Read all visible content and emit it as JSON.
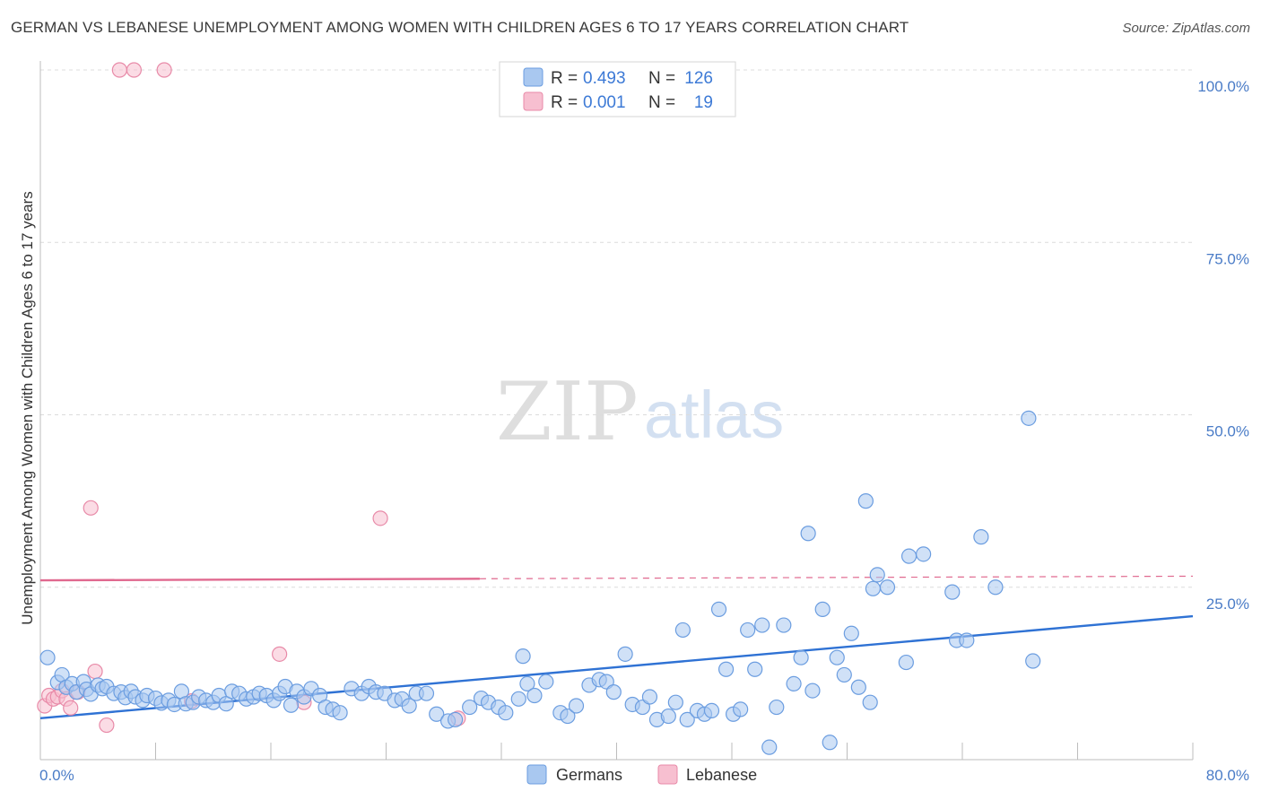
{
  "title": "GERMAN VS LEBANESE UNEMPLOYMENT AMONG WOMEN WITH CHILDREN AGES 6 TO 17 YEARS CORRELATION CHART",
  "source": "Source: ZipAtlas.com",
  "watermark": {
    "zip": "ZIP",
    "atlas": "atlas"
  },
  "colors": {
    "germans_fill": "#a9c8f0",
    "germans_stroke": "#6b9de0",
    "germans_line": "#2f72d4",
    "lebanese_fill": "#f7bfd0",
    "lebanese_stroke": "#e88aa8",
    "lebanese_line": "#e0698f",
    "tick_text": "#4a7cc7",
    "grid": "#dcdcdc"
  },
  "legend": {
    "rows": [
      {
        "r_label": "R = ",
        "r_value": "0.493",
        "n_label": "N = ",
        "n_value": "126"
      },
      {
        "r_label": "R = ",
        "r_value": "0.001",
        "n_label": "N = ",
        "n_value": "19"
      }
    ]
  },
  "chart_data": {
    "type": "scatter",
    "xlabel": "",
    "ylabel": "Unemployment Among Women with Children Ages 6 to 17 years",
    "xlim": [
      0,
      80
    ],
    "ylim": [
      0,
      100
    ],
    "x_tick_labels": [
      "0.0%",
      "80.0%"
    ],
    "y_ticks": [
      25,
      50,
      75,
      100
    ],
    "y_tick_labels": [
      "25.0%",
      "50.0%",
      "75.0%",
      "100.0%"
    ],
    "series": [
      {
        "name": "Germans",
        "trendline": {
          "x": [
            0,
            80
          ],
          "y": [
            6.0,
            20.8
          ]
        },
        "points": [
          [
            0.5,
            14.8
          ],
          [
            1.2,
            11.2
          ],
          [
            1.5,
            12.3
          ],
          [
            1.8,
            10.5
          ],
          [
            2.2,
            11.0
          ],
          [
            2.5,
            9.8
          ],
          [
            3.0,
            11.3
          ],
          [
            3.2,
            10.2
          ],
          [
            3.5,
            9.5
          ],
          [
            4.0,
            10.8
          ],
          [
            4.3,
            10.3
          ],
          [
            4.6,
            10.6
          ],
          [
            5.1,
            9.6
          ],
          [
            5.6,
            9.8
          ],
          [
            5.9,
            9.0
          ],
          [
            6.3,
            9.9
          ],
          [
            6.6,
            9.1
          ],
          [
            7.1,
            8.6
          ],
          [
            7.4,
            9.3
          ],
          [
            8.0,
            8.9
          ],
          [
            8.4,
            8.2
          ],
          [
            8.9,
            8.6
          ],
          [
            9.3,
            8.0
          ],
          [
            9.8,
            9.9
          ],
          [
            10.1,
            8.1
          ],
          [
            10.6,
            8.3
          ],
          [
            11.0,
            9.1
          ],
          [
            11.5,
            8.6
          ],
          [
            12.0,
            8.3
          ],
          [
            12.4,
            9.3
          ],
          [
            12.9,
            8.1
          ],
          [
            13.3,
            9.9
          ],
          [
            13.8,
            9.6
          ],
          [
            14.3,
            8.8
          ],
          [
            14.8,
            9.1
          ],
          [
            15.2,
            9.6
          ],
          [
            15.7,
            9.3
          ],
          [
            16.2,
            8.6
          ],
          [
            16.6,
            9.6
          ],
          [
            17.0,
            10.6
          ],
          [
            17.4,
            7.9
          ],
          [
            17.8,
            9.9
          ],
          [
            18.3,
            9.1
          ],
          [
            18.8,
            10.3
          ],
          [
            19.4,
            9.3
          ],
          [
            19.8,
            7.6
          ],
          [
            20.3,
            7.3
          ],
          [
            20.8,
            6.8
          ],
          [
            21.6,
            10.3
          ],
          [
            22.3,
            9.6
          ],
          [
            22.8,
            10.6
          ],
          [
            23.3,
            9.8
          ],
          [
            23.9,
            9.6
          ],
          [
            24.6,
            8.6
          ],
          [
            25.1,
            8.8
          ],
          [
            25.6,
            7.8
          ],
          [
            26.1,
            9.6
          ],
          [
            26.8,
            9.6
          ],
          [
            27.5,
            6.6
          ],
          [
            28.3,
            5.6
          ],
          [
            28.8,
            5.8
          ],
          [
            29.8,
            7.6
          ],
          [
            30.6,
            8.9
          ],
          [
            31.1,
            8.3
          ],
          [
            31.8,
            7.6
          ],
          [
            32.3,
            6.8
          ],
          [
            33.2,
            8.8
          ],
          [
            33.8,
            11.0
          ],
          [
            34.3,
            9.3
          ],
          [
            35.1,
            11.3
          ],
          [
            33.5,
            15.0
          ],
          [
            36.1,
            6.8
          ],
          [
            36.6,
            6.3
          ],
          [
            37.2,
            7.8
          ],
          [
            38.1,
            10.8
          ],
          [
            38.8,
            11.6
          ],
          [
            39.3,
            11.3
          ],
          [
            39.8,
            9.8
          ],
          [
            40.6,
            15.3
          ],
          [
            41.1,
            8.0
          ],
          [
            41.8,
            7.6
          ],
          [
            42.3,
            9.1
          ],
          [
            42.8,
            5.8
          ],
          [
            43.6,
            6.3
          ],
          [
            44.1,
            8.3
          ],
          [
            44.6,
            18.8
          ],
          [
            44.9,
            5.8
          ],
          [
            45.6,
            7.1
          ],
          [
            46.1,
            6.6
          ],
          [
            46.6,
            7.1
          ],
          [
            47.1,
            21.8
          ],
          [
            47.6,
            13.1
          ],
          [
            48.1,
            6.6
          ],
          [
            48.6,
            7.3
          ],
          [
            49.1,
            18.8
          ],
          [
            49.6,
            13.1
          ],
          [
            50.1,
            19.5
          ],
          [
            50.6,
            1.8
          ],
          [
            51.1,
            7.6
          ],
          [
            51.6,
            19.5
          ],
          [
            52.3,
            11.0
          ],
          [
            52.8,
            14.8
          ],
          [
            53.3,
            32.8
          ],
          [
            53.6,
            10.0
          ],
          [
            54.3,
            21.8
          ],
          [
            54.8,
            2.5
          ],
          [
            55.3,
            14.8
          ],
          [
            55.8,
            12.3
          ],
          [
            56.3,
            18.3
          ],
          [
            56.8,
            10.5
          ],
          [
            57.3,
            37.5
          ],
          [
            57.8,
            24.8
          ],
          [
            58.1,
            26.8
          ],
          [
            58.8,
            25.0
          ],
          [
            60.1,
            14.1
          ],
          [
            60.3,
            29.5
          ],
          [
            61.3,
            29.8
          ],
          [
            57.6,
            8.3
          ],
          [
            63.3,
            24.3
          ],
          [
            63.6,
            17.3
          ],
          [
            64.3,
            17.3
          ],
          [
            65.3,
            32.3
          ],
          [
            66.3,
            25.0
          ],
          [
            68.6,
            49.5
          ],
          [
            68.9,
            14.3
          ]
        ]
      },
      {
        "name": "Lebanese",
        "trendline": {
          "x": [
            0,
            80
          ],
          "y": [
            26.0,
            26.6
          ],
          "solid_until_x": 30.5
        },
        "points": [
          [
            0.3,
            7.8
          ],
          [
            0.6,
            9.3
          ],
          [
            0.9,
            8.8
          ],
          [
            1.2,
            9.1
          ],
          [
            1.5,
            10.0
          ],
          [
            1.8,
            8.8
          ],
          [
            2.1,
            7.5
          ],
          [
            2.6,
            9.8
          ],
          [
            3.5,
            36.5
          ],
          [
            3.8,
            12.8
          ],
          [
            4.6,
            5.0
          ],
          [
            5.5,
            100
          ],
          [
            6.5,
            100
          ],
          [
            8.6,
            100
          ],
          [
            10.5,
            8.5
          ],
          [
            16.6,
            15.3
          ],
          [
            18.3,
            8.3
          ],
          [
            23.6,
            35.0
          ],
          [
            29.0,
            6.0
          ]
        ]
      }
    ],
    "bottom_legend": [
      "Germans",
      "Lebanese"
    ]
  }
}
